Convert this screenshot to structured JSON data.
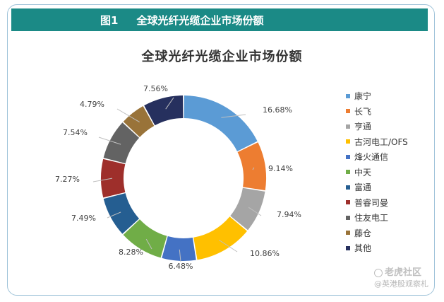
{
  "header": {
    "figure_label": "图1",
    "figure_title": "全球光纤光缆企业市场份额"
  },
  "chart_data": {
    "type": "pie",
    "style": "donut",
    "title": "全球光纤光缆企业市场份额",
    "categories": [
      "康宁",
      "长飞",
      "亨通",
      "古河电工/OFS",
      "烽火通信",
      "中天",
      "富通",
      "普睿司曼",
      "住友电工",
      "藤仓",
      "其他"
    ],
    "values": [
      16.68,
      9.14,
      7.94,
      10.86,
      6.48,
      8.28,
      7.49,
      7.27,
      7.54,
      4.79,
      7.56
    ],
    "labels": [
      "16.68%",
      "9.14%",
      "7.94%",
      "10.86%",
      "6.48%",
      "8.28%",
      "7.49%",
      "7.27%",
      "7.54%",
      "4.79%",
      "7.56%"
    ],
    "colors": [
      "#5b9bd5",
      "#ed7d31",
      "#a5a5a5",
      "#ffc000",
      "#4472c4",
      "#70ad47",
      "#255e91",
      "#9e2f2b",
      "#636363",
      "#997339",
      "#26305e"
    ],
    "legend_position": "right"
  },
  "watermark": {
    "main": "老虎社区",
    "sub": "@英港股观察札"
  }
}
